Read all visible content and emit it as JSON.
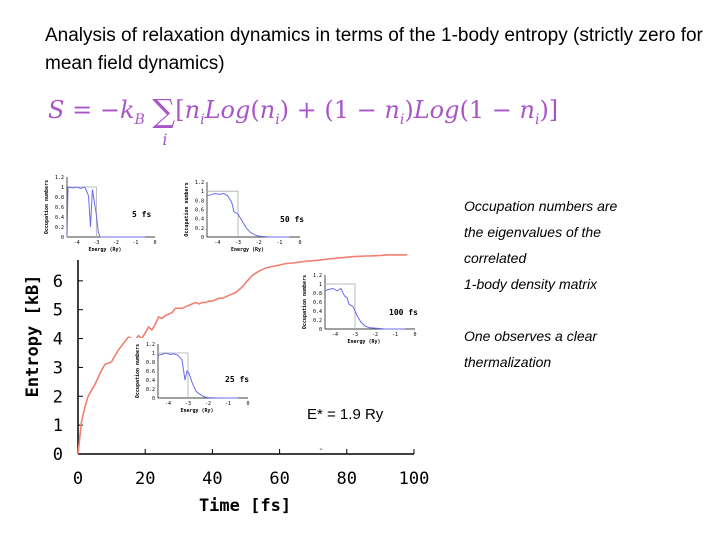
{
  "slide": {
    "title": "Analysis of  relaxation dynamics in terms of the 1-body entropy (strictly zero for mean field dynamics)",
    "formula": "S = −k_B ∑_i [n_i Log(n_i) + (1 − n_i) Log(1 − n_i)]",
    "side_notes": [
      "Occupation numbers are",
      "the eigenvalues of the",
      "correlated",
      "1-body density matrix",
      "One observes a clear",
      "thermalization"
    ],
    "annotation": "E* = 1.9 Ry",
    "colors": {
      "accent": "#a855c8",
      "entropy_curve": "#f08070",
      "inset_curve": "#6b6bf0"
    }
  },
  "chart_data": [
    {
      "type": "line",
      "xlabel": "Time [fs]",
      "ylabel": "Entropy [kB]",
      "xlim": [
        0,
        100
      ],
      "ylim": [
        0,
        7
      ],
      "xticks": [
        0,
        20,
        40,
        60,
        80,
        100
      ],
      "yticks": [
        0,
        1,
        2,
        3,
        4,
        5,
        6
      ],
      "grid": false,
      "series": [
        {
          "x": [
            0,
            1,
            2,
            3,
            5,
            7,
            8,
            10,
            12,
            14,
            15,
            17,
            18,
            19,
            20,
            21,
            22,
            23,
            24,
            25,
            26,
            27,
            28,
            29,
            30,
            31,
            32,
            33,
            34,
            35,
            36,
            37,
            38,
            39,
            40,
            41,
            42,
            43,
            44,
            45,
            46,
            47,
            48,
            49,
            50,
            52,
            54,
            55,
            56,
            58,
            60,
            62,
            64,
            66,
            68,
            70,
            72,
            74,
            76,
            78,
            80,
            82,
            84,
            86,
            88,
            90,
            92,
            94,
            96,
            98
          ],
          "values": [
            0,
            1.1,
            1.6,
            2.0,
            2.4,
            2.9,
            3.1,
            3.2,
            3.6,
            3.9,
            4.05,
            3.95,
            4.1,
            4.0,
            4.2,
            4.4,
            4.3,
            4.5,
            4.75,
            4.7,
            4.8,
            4.85,
            4.9,
            5.05,
            5.05,
            5.05,
            5.1,
            5.15,
            5.2,
            5.25,
            5.2,
            5.25,
            5.25,
            5.3,
            5.3,
            5.35,
            5.4,
            5.4,
            5.45,
            5.5,
            5.55,
            5.6,
            5.7,
            5.8,
            5.95,
            6.2,
            6.35,
            6.4,
            6.45,
            6.5,
            6.55,
            6.6,
            6.62,
            6.65,
            6.68,
            6.7,
            6.72,
            6.75,
            6.77,
            6.8,
            6.82,
            6.84,
            6.85,
            6.86,
            6.87,
            6.88,
            6.9,
            6.9,
            6.9,
            6.9
          ]
        }
      ]
    },
    {
      "type": "line",
      "label": "5 fs",
      "xlabel": "Energy (Ry)",
      "ylabel": "Occupation numbers",
      "xlim": [
        -4.5,
        0
      ],
      "ylim": [
        0,
        1.2
      ],
      "xticks": [
        -4,
        -3,
        -2,
        -1,
        0
      ],
      "yticks": [
        0,
        0.2,
        0.4,
        0.6,
        0.8,
        1,
        1.2
      ],
      "x": [
        -4.5,
        -4.45,
        -4.2,
        -4.0,
        -3.8,
        -3.6,
        -3.5,
        -3.4,
        -3.3,
        -3.2,
        -3.0,
        -2.9,
        -2.8,
        -2.5,
        -2.0,
        -1.5,
        -1.0,
        -0.5
      ],
      "values": [
        0,
        1.0,
        0.98,
        1.0,
        0.97,
        1.0,
        0.92,
        0.82,
        0.2,
        0.95,
        0.45,
        0.1,
        0.0,
        0.0,
        0.0,
        0.0,
        0.0,
        0.0
      ],
      "fermi_edge": -3
    },
    {
      "type": "line",
      "label": "50 fs",
      "xlabel": "Energy (Ry)",
      "ylabel": "Occupation numbers",
      "xlim": [
        -4.5,
        0
      ],
      "ylim": [
        0,
        1.2
      ],
      "xticks": [
        -4,
        -3,
        -2,
        -1,
        0
      ],
      "yticks": [
        0,
        0.2,
        0.4,
        0.6,
        0.8,
        1,
        1.2
      ],
      "x": [
        -4.5,
        -4.3,
        -4.1,
        -3.9,
        -3.7,
        -3.5,
        -3.3,
        -3.2,
        -3.0,
        -2.8,
        -2.6,
        -2.4,
        -2.2,
        -2.0,
        -1.5,
        -1.0,
        -0.5
      ],
      "values": [
        0.9,
        0.92,
        0.95,
        0.93,
        0.95,
        0.9,
        0.75,
        0.55,
        0.5,
        0.35,
        0.2,
        0.1,
        0.05,
        0.02,
        0.0,
        0.0,
        0.0
      ],
      "fermi_edge": -3
    },
    {
      "type": "line",
      "label": "100 fs",
      "xlabel": "Energy (Ry)",
      "ylabel": "Occupation numbers",
      "xlim": [
        -4.5,
        0
      ],
      "ylim": [
        0,
        1.2
      ],
      "xticks": [
        -4,
        -3,
        -2,
        -1,
        0
      ],
      "yticks": [
        0,
        0.2,
        0.4,
        0.6,
        0.8,
        1,
        1.2
      ],
      "x": [
        -4.5,
        -4.3,
        -4.1,
        -3.9,
        -3.7,
        -3.6,
        -3.5,
        -3.4,
        -3.3,
        -3.1,
        -2.9,
        -2.7,
        -2.5,
        -2.3,
        -2.0,
        -1.5,
        -1.0,
        -0.5
      ],
      "values": [
        0.85,
        0.88,
        0.9,
        0.85,
        0.9,
        0.8,
        0.72,
        0.7,
        0.55,
        0.5,
        0.3,
        0.15,
        0.07,
        0.03,
        0.02,
        0.0,
        0.0,
        0.0
      ],
      "fermi_edge": -3
    },
    {
      "type": "line",
      "label": "25 fs",
      "xlabel": "Energy (Ry)",
      "ylabel": "Occupation numbers",
      "xlim": [
        -4.5,
        0
      ],
      "ylim": [
        0,
        1.2
      ],
      "xticks": [
        -4,
        -3,
        -2,
        -1,
        0
      ],
      "yticks": [
        0,
        0.2,
        0.4,
        0.6,
        0.8,
        1,
        1.2
      ],
      "x": [
        -4.5,
        -4.3,
        -4.1,
        -3.9,
        -3.7,
        -3.5,
        -3.3,
        -3.15,
        -3.05,
        -2.95,
        -2.8,
        -2.6,
        -2.4,
        -2.2,
        -2.0,
        -1.5,
        -1.0,
        -0.5
      ],
      "values": [
        0.95,
        0.97,
        1.0,
        0.97,
        0.98,
        0.95,
        0.85,
        0.4,
        0.6,
        0.55,
        0.35,
        0.15,
        0.08,
        0.03,
        0.01,
        0.0,
        0.0,
        0.0
      ],
      "fermi_edge": -3
    }
  ]
}
